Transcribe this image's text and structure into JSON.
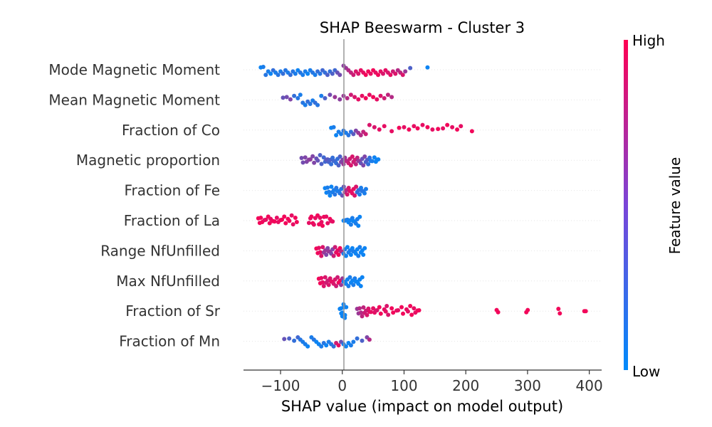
{
  "chart_data": {
    "type": "scatter",
    "subtype": "beeswarm",
    "title": "SHAP Beeswarm - Cluster 3",
    "xlabel": "SHAP value (impact on model output)",
    "xlim": [
      -160,
      420
    ],
    "xticks": [
      -100,
      0,
      100,
      200,
      300,
      400
    ],
    "xtick_labels": [
      "−100",
      "0",
      "100",
      "200",
      "300",
      "400"
    ],
    "grid": false,
    "colorbar": {
      "label": "Feature value",
      "high": "High",
      "low": "Low",
      "low_color": "#008bfb",
      "high_color": "#ff0052"
    },
    "features": [
      {
        "name": "Mode Magnetic Moment",
        "points": [
          [
            -132,
            0.05
          ],
          [
            -128,
            0.1
          ],
          [
            -124,
            0.15
          ],
          [
            -120,
            0.1
          ],
          [
            -116,
            0.05
          ],
          [
            -112,
            0.2
          ],
          [
            -108,
            0.1
          ],
          [
            -104,
            0.15
          ],
          [
            -100,
            0.1
          ],
          [
            -96,
            0.2
          ],
          [
            -92,
            0.15
          ],
          [
            -88,
            0.1
          ],
          [
            -84,
            0.2
          ],
          [
            -80,
            0.15
          ],
          [
            -76,
            0.1
          ],
          [
            -72,
            0.05
          ],
          [
            -68,
            0.15
          ],
          [
            -64,
            0.1
          ],
          [
            -60,
            0.1
          ],
          [
            -56,
            0.05
          ],
          [
            -52,
            0.1
          ],
          [
            -48,
            0.15
          ],
          [
            -44,
            0.1
          ],
          [
            -40,
            0.2
          ],
          [
            -36,
            0.15
          ],
          [
            -32,
            0.25
          ],
          [
            -28,
            0.2
          ],
          [
            -24,
            0.3
          ],
          [
            -20,
            0.2
          ],
          [
            -16,
            0.3
          ],
          [
            -12,
            0.25
          ],
          [
            -8,
            0.4
          ],
          [
            -4,
            0.45
          ],
          [
            2,
            0.55
          ],
          [
            6,
            0.6
          ],
          [
            10,
            0.7
          ],
          [
            14,
            0.75
          ],
          [
            18,
            0.8
          ],
          [
            22,
            0.85
          ],
          [
            26,
            0.85
          ],
          [
            30,
            0.9
          ],
          [
            34,
            0.9
          ],
          [
            38,
            0.95
          ],
          [
            42,
            0.95
          ],
          [
            46,
            0.9
          ],
          [
            50,
            0.95
          ],
          [
            54,
            0.9
          ],
          [
            58,
            0.95
          ],
          [
            62,
            0.9
          ],
          [
            66,
            0.85
          ],
          [
            70,
            0.9
          ],
          [
            74,
            0.85
          ],
          [
            78,
            0.9
          ],
          [
            82,
            0.8
          ],
          [
            86,
            0.85
          ],
          [
            90,
            0.7
          ],
          [
            94,
            0.75
          ],
          [
            98,
            0.85
          ],
          [
            102,
            0.6
          ],
          [
            110,
            0.3
          ],
          [
            138,
            0.05
          ]
        ]
      },
      {
        "name": "Mean Magnetic Moment",
        "points": [
          [
            -96,
            0.4
          ],
          [
            -90,
            0.45
          ],
          [
            -84,
            0.5
          ],
          [
            -78,
            0.2
          ],
          [
            -72,
            0.15
          ],
          [
            -68,
            0.1
          ],
          [
            -64,
            0.15
          ],
          [
            -60,
            0.1
          ],
          [
            -56,
            0.2
          ],
          [
            -52,
            0.15
          ],
          [
            -48,
            0.1
          ],
          [
            -44,
            0.2
          ],
          [
            -40,
            0.15
          ],
          [
            -34,
            0.1
          ],
          [
            -28,
            0.3
          ],
          [
            -20,
            0.45
          ],
          [
            -12,
            0.6
          ],
          [
            -4,
            0.55
          ],
          [
            2,
            0.6
          ],
          [
            8,
            0.7
          ],
          [
            14,
            0.8
          ],
          [
            20,
            0.85
          ],
          [
            26,
            0.9
          ],
          [
            32,
            0.9
          ],
          [
            38,
            0.95
          ],
          [
            44,
            0.9
          ],
          [
            50,
            0.95
          ],
          [
            56,
            0.9
          ],
          [
            62,
            0.85
          ],
          [
            68,
            0.8
          ],
          [
            74,
            0.75
          ],
          [
            80,
            0.7
          ]
        ]
      },
      {
        "name": "Fraction of Co",
        "points": [
          [
            -18,
            0.05
          ],
          [
            -14,
            0.1
          ],
          [
            -10,
            0.05
          ],
          [
            -6,
            0.1
          ],
          [
            -2,
            0.1
          ],
          [
            2,
            0.15
          ],
          [
            6,
            0.1
          ],
          [
            10,
            0.15
          ],
          [
            14,
            0.2
          ],
          [
            18,
            0.35
          ],
          [
            22,
            0.5
          ],
          [
            26,
            0.6
          ],
          [
            30,
            0.7
          ],
          [
            34,
            0.75
          ],
          [
            38,
            0.8
          ],
          [
            44,
            0.85
          ],
          [
            52,
            0.85
          ],
          [
            60,
            0.9
          ],
          [
            68,
            0.9
          ],
          [
            80,
            0.9
          ],
          [
            92,
            0.95
          ],
          [
            100,
            0.9
          ],
          [
            108,
            0.95
          ],
          [
            116,
            0.9
          ],
          [
            122,
            0.95
          ],
          [
            130,
            0.9
          ],
          [
            138,
            0.95
          ],
          [
            146,
            0.9
          ],
          [
            155,
            0.95
          ],
          [
            163,
            0.9
          ],
          [
            170,
            0.95
          ],
          [
            178,
            0.9
          ],
          [
            186,
            0.95
          ],
          [
            192,
            0.9
          ],
          [
            210,
            0.95
          ]
        ]
      },
      {
        "name": "Magnetic proportion",
        "points": [
          [
            -66,
            0.45
          ],
          [
            -60,
            0.5
          ],
          [
            -54,
            0.55
          ],
          [
            -48,
            0.5
          ],
          [
            -42,
            0.4
          ],
          [
            -36,
            0.3
          ],
          [
            -30,
            0.25
          ],
          [
            -26,
            0.35
          ],
          [
            -22,
            0.3
          ],
          [
            -18,
            0.2
          ],
          [
            -14,
            0.25
          ],
          [
            -10,
            0.2
          ],
          [
            -6,
            0.3
          ],
          [
            -2,
            0.5
          ],
          [
            2,
            0.6
          ],
          [
            6,
            0.7
          ],
          [
            10,
            0.8
          ],
          [
            14,
            0.85
          ],
          [
            18,
            0.8
          ],
          [
            22,
            0.75
          ],
          [
            26,
            0.6
          ],
          [
            30,
            0.4
          ],
          [
            34,
            0.5
          ],
          [
            38,
            0.3
          ],
          [
            42,
            0.2
          ],
          [
            46,
            0.1
          ],
          [
            52,
            0.05
          ],
          [
            56,
            0.05
          ]
        ]
      },
      {
        "name": "Fraction of Fe",
        "points": [
          [
            -28,
            0.05
          ],
          [
            -24,
            0.1
          ],
          [
            -20,
            0.05
          ],
          [
            -16,
            0.1
          ],
          [
            -12,
            0.15
          ],
          [
            -8,
            0.1
          ],
          [
            -4,
            0.15
          ],
          [
            0,
            0.4
          ],
          [
            4,
            0.7
          ],
          [
            8,
            0.85
          ],
          [
            12,
            0.9
          ],
          [
            16,
            0.9
          ],
          [
            20,
            0.85
          ],
          [
            24,
            0.2
          ],
          [
            28,
            0.1
          ],
          [
            32,
            0.15
          ],
          [
            36,
            0.1
          ]
        ]
      },
      {
        "name": "Fraction of La",
        "points": [
          [
            -136,
            0.95
          ],
          [
            -132,
            0.95
          ],
          [
            -126,
            0.9
          ],
          [
            -120,
            0.95
          ],
          [
            -116,
            0.9
          ],
          [
            -112,
            0.95
          ],
          [
            -106,
            0.9
          ],
          [
            -100,
            0.95
          ],
          [
            -94,
            0.95
          ],
          [
            -88,
            0.95
          ],
          [
            -82,
            0.9
          ],
          [
            -76,
            0.95
          ],
          [
            -54,
            0.9
          ],
          [
            -50,
            0.95
          ],
          [
            -46,
            0.9
          ],
          [
            -40,
            0.95
          ],
          [
            -36,
            0.9
          ],
          [
            -32,
            0.95
          ],
          [
            -26,
            0.9
          ],
          [
            -20,
            0.95
          ],
          [
            -18,
            0.9
          ],
          [
            2,
            0.05
          ],
          [
            6,
            0.1
          ],
          [
            10,
            0.05
          ],
          [
            14,
            0.1
          ],
          [
            18,
            0.05
          ],
          [
            22,
            0.1
          ],
          [
            26,
            0.05
          ]
        ]
      },
      {
        "name": "Range NfUnfilled",
        "points": [
          [
            -42,
            0.95
          ],
          [
            -38,
            0.9
          ],
          [
            -34,
            0.85
          ],
          [
            -30,
            0.6
          ],
          [
            -26,
            0.5
          ],
          [
            -22,
            0.6
          ],
          [
            -18,
            0.5
          ],
          [
            -14,
            0.8
          ],
          [
            -10,
            0.9
          ],
          [
            -6,
            0.95
          ],
          [
            -2,
            0.7
          ],
          [
            2,
            0.1
          ],
          [
            6,
            0.05
          ],
          [
            10,
            0.1
          ],
          [
            14,
            0.05
          ],
          [
            18,
            0.1
          ],
          [
            22,
            0.05
          ],
          [
            26,
            0.1
          ],
          [
            30,
            0.05
          ],
          [
            34,
            0.05
          ]
        ]
      },
      {
        "name": "Max NfUnfilled",
        "points": [
          [
            -38,
            0.95
          ],
          [
            -34,
            0.9
          ],
          [
            -30,
            0.85
          ],
          [
            -26,
            0.8
          ],
          [
            -22,
            0.85
          ],
          [
            -18,
            0.9
          ],
          [
            -14,
            0.85
          ],
          [
            -10,
            0.8
          ],
          [
            -6,
            0.95
          ],
          [
            -2,
            0.6
          ],
          [
            2,
            0.1
          ],
          [
            6,
            0.05
          ],
          [
            10,
            0.1
          ],
          [
            14,
            0.05
          ],
          [
            18,
            0.1
          ],
          [
            22,
            0.05
          ],
          [
            26,
            0.05
          ],
          [
            30,
            0.05
          ]
        ]
      },
      {
        "name": "Fraction of Sr",
        "points": [
          [
            -4,
            0.05
          ],
          [
            -2,
            0.05
          ],
          [
            0,
            0.05
          ],
          [
            2,
            0.05
          ],
          [
            4,
            0.05
          ],
          [
            24,
            0.6
          ],
          [
            28,
            0.7
          ],
          [
            32,
            0.75
          ],
          [
            36,
            0.8
          ],
          [
            40,
            0.85
          ],
          [
            44,
            0.9
          ],
          [
            50,
            0.9
          ],
          [
            54,
            0.85
          ],
          [
            60,
            0.95
          ],
          [
            68,
            0.9
          ],
          [
            72,
            0.85
          ],
          [
            80,
            0.95
          ],
          [
            88,
            0.9
          ],
          [
            96,
            0.95
          ],
          [
            104,
            0.9
          ],
          [
            110,
            0.95
          ],
          [
            116,
            0.9
          ],
          [
            122,
            0.95
          ],
          [
            250,
            0.95
          ],
          [
            298,
            0.95
          ],
          [
            350,
            0.95
          ],
          [
            392,
            0.95
          ]
        ]
      },
      {
        "name": "Fraction of Mn",
        "points": [
          [
            -94,
            0.4
          ],
          [
            -86,
            0.3
          ],
          [
            -78,
            0.2
          ],
          [
            -72,
            0.25
          ],
          [
            -68,
            0.15
          ],
          [
            -64,
            0.1
          ],
          [
            -60,
            0.1
          ],
          [
            -56,
            0.05
          ],
          [
            -50,
            0.1
          ],
          [
            -46,
            0.15
          ],
          [
            -42,
            0.05
          ],
          [
            -38,
            0.05
          ],
          [
            -34,
            0.1
          ],
          [
            -30,
            0.15
          ],
          [
            -26,
            0.05
          ],
          [
            -22,
            0.1
          ],
          [
            -18,
            0.15
          ],
          [
            -14,
            0.2
          ],
          [
            -10,
            0.8
          ],
          [
            -6,
            0.9
          ],
          [
            -2,
            0.4
          ],
          [
            2,
            0.1
          ],
          [
            6,
            0.05
          ],
          [
            10,
            0.05
          ],
          [
            14,
            0.1
          ],
          [
            18,
            0.1
          ],
          [
            24,
            0.2
          ],
          [
            32,
            0.3
          ],
          [
            40,
            0.5
          ],
          [
            44,
            0.7
          ]
        ]
      }
    ]
  }
}
